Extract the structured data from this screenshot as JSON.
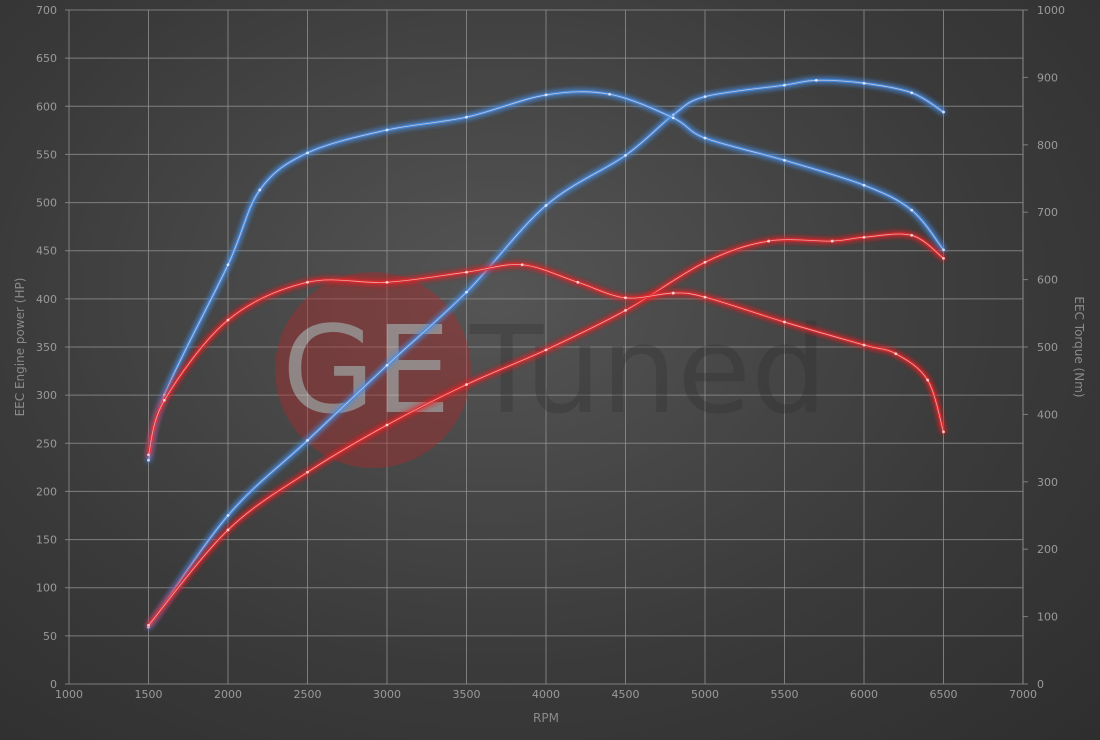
{
  "chart_data": {
    "type": "line",
    "title": "",
    "xlabel": "RPM",
    "ylabel": "EEC Engine power (HP)",
    "y2label": "EEC Torque (Nm)",
    "xlim": [
      1000,
      7000
    ],
    "ylim": [
      0,
      700
    ],
    "y2lim": [
      0,
      1000
    ],
    "x_ticks": [
      1000,
      1500,
      2000,
      2500,
      3000,
      3500,
      4000,
      4500,
      5000,
      5500,
      6000,
      6500,
      7000
    ],
    "y_ticks": [
      0,
      50,
      100,
      150,
      200,
      250,
      300,
      350,
      400,
      450,
      500,
      550,
      600,
      650,
      700
    ],
    "y2_ticks": [
      0,
      100,
      200,
      300,
      400,
      500,
      600,
      700,
      800,
      900,
      1000
    ],
    "grid": true,
    "legend": "none",
    "colors": {
      "tuned": "#4a90e8",
      "stock": "#e8282a"
    },
    "series": [
      {
        "axis": "left",
        "color": "tuned",
        "x": [
          1500,
          2000,
          2500,
          3000,
          3500,
          4000,
          4500,
          4800,
          5000,
          5500,
          5700,
          6000,
          6300,
          6500
        ],
        "values": [
          59,
          175,
          253,
          331,
          407,
          497,
          549,
          591,
          610,
          622,
          627,
          624,
          614,
          594
        ]
      },
      {
        "axis": "right",
        "color": "tuned",
        "x": [
          1500,
          1600,
          2000,
          2200,
          2500,
          3000,
          3500,
          4000,
          4400,
          4800,
          5000,
          5500,
          6000,
          6300,
          6500
        ],
        "values": [
          332,
          429,
          622,
          733,
          788,
          822,
          841,
          874,
          875,
          840,
          810,
          777,
          740,
          703,
          644
        ]
      },
      {
        "axis": "left",
        "color": "stock",
        "x": [
          1500,
          2000,
          2500,
          3000,
          3500,
          4000,
          4500,
          5000,
          5400,
          5800,
          6000,
          6300,
          6500
        ],
        "values": [
          61,
          160,
          220,
          269,
          311,
          347,
          388,
          438,
          460,
          460,
          464,
          466,
          442
        ]
      },
      {
        "axis": "right",
        "color": "stock",
        "x": [
          1500,
          1600,
          2000,
          2500,
          3000,
          3500,
          3850,
          4200,
          4500,
          4800,
          5000,
          5500,
          6000,
          6200,
          6400,
          6500
        ],
        "values": [
          340,
          421,
          540,
          596,
          596,
          611,
          622,
          596,
          573,
          580,
          574,
          537,
          503,
          490,
          451,
          374
        ]
      }
    ]
  },
  "watermark": {
    "logo_text": "GETuned"
  }
}
